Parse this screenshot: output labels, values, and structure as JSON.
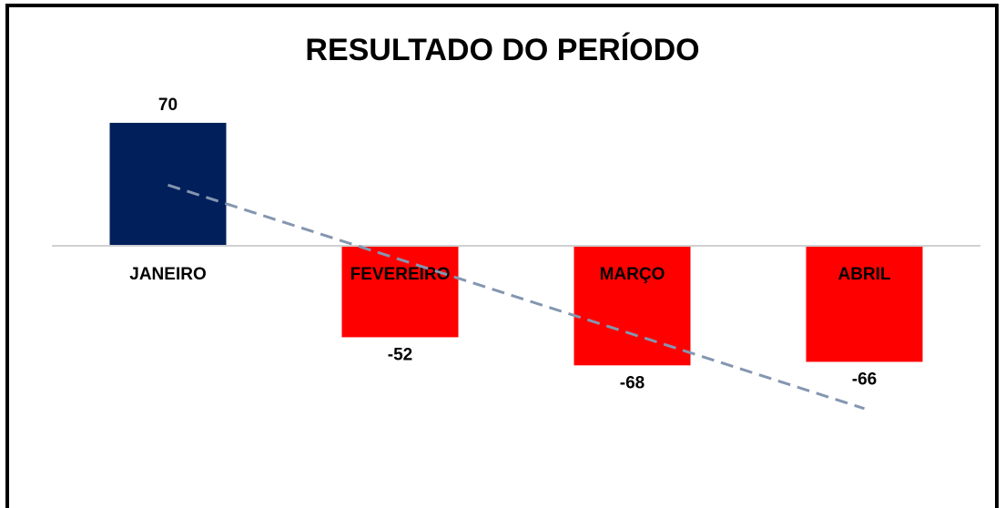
{
  "chart_data": {
    "type": "bar",
    "title": "RESULTADO DO PERÍODO",
    "categories": [
      "JANEIRO",
      "FEVEREIRO",
      "MARÇO",
      "ABRIL"
    ],
    "values": [
      70,
      -52,
      -68,
      -66
    ],
    "positive_color": "#001f5b",
    "negative_color": "#ff0000",
    "ylim": [
      -130,
      100
    ],
    "trendline": "linear",
    "trendline_color": "#8496b0"
  }
}
